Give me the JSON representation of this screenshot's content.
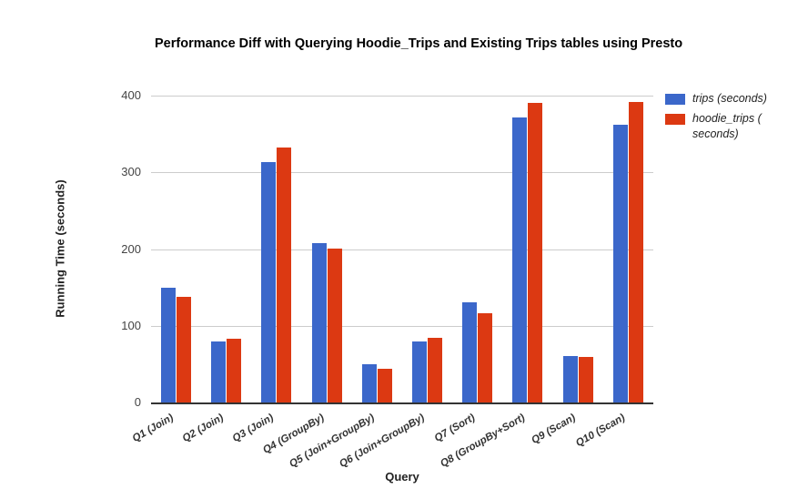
{
  "header": {
    "title": "Performance Diff with Querying Hoodie_Trips and Existing Trips tables using Presto"
  },
  "colors": {
    "series_blue": "#3b67ca",
    "series_red": "#dc3912",
    "gridline": "#cccccc",
    "axis_line": "#333333"
  },
  "chart_data": {
    "type": "bar",
    "title": "Performance Diff with Querying Hoodie_Trips and Existing Trips tables using Presto",
    "xlabel": "Query",
    "ylabel": "Running Time (seconds)",
    "ylim": [
      0,
      400
    ],
    "y_ticks": [
      0,
      100,
      200,
      300,
      400
    ],
    "grid": true,
    "legend_position": "right",
    "categories": [
      "Q1 (Join)",
      "Q2 (Join)",
      "Q3 (Join)",
      "Q4 (GroupBy)",
      "Q5 (Join+GroupBy)",
      "Q6 (Join+GroupBy)",
      "Q7 (Sort)",
      "Q8 (GroupBy+Sort)",
      "Q9 (Scan)",
      "Q10 (Scan)"
    ],
    "series": [
      {
        "name": "trips (seconds)",
        "color": "#3b67ca",
        "values": [
          150,
          80,
          313,
          208,
          50,
          80,
          130,
          371,
          61,
          362
        ]
      },
      {
        "name": "hoodie_trips ( seconds)",
        "color": "#dc3912",
        "values": [
          138,
          83,
          332,
          201,
          44,
          84,
          116,
          390,
          59,
          392
        ]
      }
    ]
  }
}
